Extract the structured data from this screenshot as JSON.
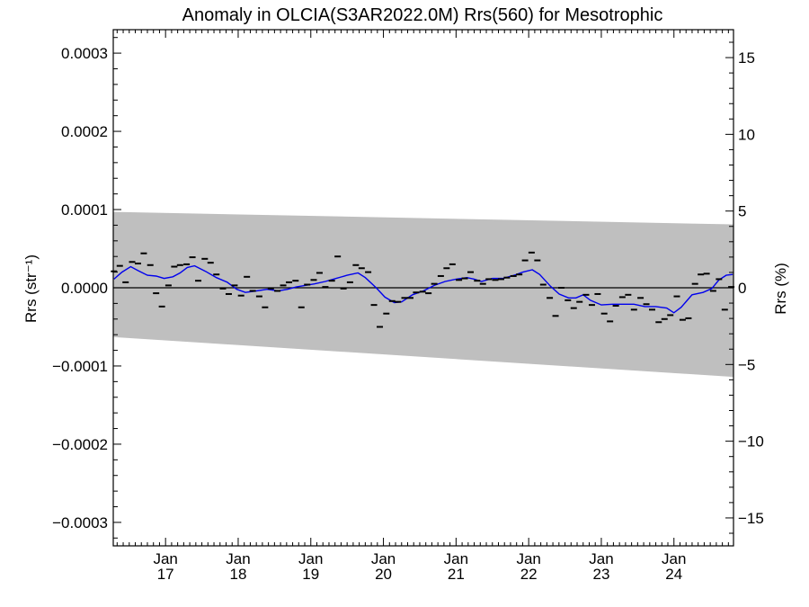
{
  "chart_data": {
    "type": "line",
    "title": "Anomaly in OLCIA(S3AR2022.0M) Rrs(560) for Mesotrophic",
    "ylabel_left": "Rrs (str⁻¹)",
    "ylabel_right": "Rrs (%)",
    "xlim": [
      2016.28,
      2024.82
    ],
    "ylim": [
      -0.00033,
      0.00033
    ],
    "ylim_right": [
      -16.82,
      16.82
    ],
    "x_ticks": [
      {
        "value": 2017.0,
        "line1": "Jan",
        "line2": "17"
      },
      {
        "value": 2018.0,
        "line1": "Jan",
        "line2": "18"
      },
      {
        "value": 2019.0,
        "line1": "Jan",
        "line2": "19"
      },
      {
        "value": 2020.0,
        "line1": "Jan",
        "line2": "20"
      },
      {
        "value": 2021.0,
        "line1": "Jan",
        "line2": "21"
      },
      {
        "value": 2022.0,
        "line1": "Jan",
        "line2": "22"
      },
      {
        "value": 2023.0,
        "line1": "Jan",
        "line2": "23"
      },
      {
        "value": 2024.0,
        "line1": "Jan",
        "line2": "24"
      }
    ],
    "y_ticks_left": [
      {
        "value": 0.0003,
        "label": "0.0003"
      },
      {
        "value": 0.0002,
        "label": "0.0002"
      },
      {
        "value": 0.0001,
        "label": "0.0001"
      },
      {
        "value": 0.0,
        "label": "0.0000"
      },
      {
        "value": -0.0001,
        "label": "−0.0001"
      },
      {
        "value": -0.0002,
        "label": "−0.0002"
      },
      {
        "value": -0.0003,
        "label": "−0.0003"
      }
    ],
    "y_ticks_right": [
      {
        "value": 15,
        "label": "15"
      },
      {
        "value": 10,
        "label": "10"
      },
      {
        "value": 5,
        "label": "5"
      },
      {
        "value": 0,
        "label": "0"
      },
      {
        "value": -5,
        "label": "−5"
      },
      {
        "value": -10,
        "label": "−10"
      },
      {
        "value": -15,
        "label": "−15"
      }
    ],
    "envelope": {
      "x": [
        2016.28,
        2024.82
      ],
      "upper": [
        9.7e-05,
        8.1e-05
      ],
      "lower": [
        -6.3e-05,
        -0.000114
      ],
      "color": "#bfbfbf"
    },
    "zero_line": 0,
    "monthly_anomaly": {
      "color": "#000000",
      "points": [
        [
          2016.29,
          2.1e-05
        ],
        [
          2016.37,
          2.8e-05
        ],
        [
          2016.45,
          7e-06
        ],
        [
          2016.54,
          3.3e-05
        ],
        [
          2016.62,
          3.1e-05
        ],
        [
          2016.7,
          4.4e-05
        ],
        [
          2016.79,
          2.9e-05
        ],
        [
          2016.87,
          -7e-06
        ],
        [
          2016.95,
          -2.4e-05
        ],
        [
          2017.04,
          3e-06
        ],
        [
          2017.12,
          2.7e-05
        ],
        [
          2017.2,
          2.9e-05
        ],
        [
          2017.29,
          3e-05
        ],
        [
          2017.37,
          3.9e-05
        ],
        [
          2017.45,
          9e-06
        ],
        [
          2017.54,
          3.7e-05
        ],
        [
          2017.62,
          3.2e-05
        ],
        [
          2017.7,
          1.7e-05
        ],
        [
          2017.79,
          -1e-06
        ],
        [
          2017.87,
          -8e-06
        ],
        [
          2017.95,
          3e-06
        ],
        [
          2018.04,
          -1e-05
        ],
        [
          2018.12,
          1.4e-05
        ],
        [
          2018.2,
          -4e-06
        ],
        [
          2018.29,
          -1.1e-05
        ],
        [
          2018.37,
          -2.5e-05
        ],
        [
          2018.45,
          -1e-06
        ],
        [
          2018.54,
          -4e-06
        ],
        [
          2018.62,
          3e-06
        ],
        [
          2018.7,
          7e-06
        ],
        [
          2018.79,
          9e-06
        ],
        [
          2018.87,
          -2.5e-05
        ],
        [
          2018.95,
          4e-06
        ],
        [
          2019.04,
          1e-05
        ],
        [
          2019.12,
          1.9e-05
        ],
        [
          2019.2,
          1e-06
        ],
        [
          2019.29,
          9e-06
        ],
        [
          2019.37,
          4e-05
        ],
        [
          2019.45,
          -1e-06
        ],
        [
          2019.54,
          7e-06
        ],
        [
          2019.62,
          2.9e-05
        ],
        [
          2019.7,
          2.5e-05
        ],
        [
          2019.79,
          2e-05
        ],
        [
          2019.87,
          -2.2e-05
        ],
        [
          2019.95,
          -5e-05
        ],
        [
          2020.04,
          -3.3e-05
        ],
        [
          2020.12,
          -1.7e-05
        ],
        [
          2020.2,
          -1.8e-05
        ],
        [
          2020.29,
          -1.3e-05
        ],
        [
          2020.37,
          -1.3e-05
        ],
        [
          2020.45,
          -6e-06
        ],
        [
          2020.54,
          -5e-06
        ],
        [
          2020.62,
          -7e-06
        ],
        [
          2020.7,
          5e-06
        ],
        [
          2020.79,
          1.5e-05
        ],
        [
          2020.87,
          2.5e-05
        ],
        [
          2020.95,
          3e-05
        ],
        [
          2021.04,
          1e-05
        ],
        [
          2021.12,
          1.2e-05
        ],
        [
          2021.2,
          2e-05
        ],
        [
          2021.29,
          9e-06
        ],
        [
          2021.37,
          5e-06
        ],
        [
          2021.45,
          1.1e-05
        ],
        [
          2021.54,
          1e-05
        ],
        [
          2021.62,
          1.1e-05
        ],
        [
          2021.7,
          1.3e-05
        ],
        [
          2021.79,
          1.5e-05
        ],
        [
          2021.87,
          1.7e-05
        ],
        [
          2021.95,
          3.5e-05
        ],
        [
          2022.04,
          4.5e-05
        ],
        [
          2022.12,
          3.5e-05
        ],
        [
          2022.2,
          4e-06
        ],
        [
          2022.29,
          -1.3e-05
        ],
        [
          2022.37,
          -3.6e-05
        ],
        [
          2022.45,
          0.0
        ],
        [
          2022.54,
          -1.6e-05
        ],
        [
          2022.62,
          -2.6e-05
        ],
        [
          2022.7,
          -1.8e-05
        ],
        [
          2022.79,
          -9e-06
        ],
        [
          2022.87,
          -2.2e-05
        ],
        [
          2022.95,
          -8e-06
        ],
        [
          2023.04,
          -3.3e-05
        ],
        [
          2023.12,
          -4.3e-05
        ],
        [
          2023.2,
          -2.3e-05
        ],
        [
          2023.29,
          -1.2e-05
        ],
        [
          2023.37,
          -9e-06
        ],
        [
          2023.45,
          -2.8e-05
        ],
        [
          2023.54,
          -1.3e-05
        ],
        [
          2023.62,
          -2.1e-05
        ],
        [
          2023.7,
          -2.8e-05
        ],
        [
          2023.79,
          -4.4e-05
        ],
        [
          2023.87,
          -4e-05
        ],
        [
          2023.95,
          -3.5e-05
        ],
        [
          2024.04,
          -1.1e-05
        ],
        [
          2024.12,
          -4.1e-05
        ],
        [
          2024.2,
          -3.9e-05
        ],
        [
          2024.29,
          5e-06
        ],
        [
          2024.37,
          1.7e-05
        ],
        [
          2024.45,
          1.8e-05
        ],
        [
          2024.54,
          -4e-06
        ],
        [
          2024.62,
          1.1e-05
        ],
        [
          2024.7,
          -2.8e-05
        ],
        [
          2024.79,
          1e-06
        ]
      ]
    },
    "running_mean": {
      "color": "#0000ee",
      "points": [
        [
          2016.29,
          1.1e-05
        ],
        [
          2016.4,
          2e-05
        ],
        [
          2016.52,
          2.7e-05
        ],
        [
          2016.62,
          2.2e-05
        ],
        [
          2016.75,
          1.6e-05
        ],
        [
          2016.87,
          1.5e-05
        ],
        [
          2016.98,
          1.2e-05
        ],
        [
          2017.1,
          1.4e-05
        ],
        [
          2017.2,
          1.9e-05
        ],
        [
          2017.3,
          2.6e-05
        ],
        [
          2017.4,
          2.8e-05
        ],
        [
          2017.55,
          2.1e-05
        ],
        [
          2017.7,
          1.3e-05
        ],
        [
          2017.85,
          7e-06
        ],
        [
          2017.98,
          -2e-06
        ],
        [
          2018.1,
          -6e-06
        ],
        [
          2018.25,
          -4e-06
        ],
        [
          2018.4,
          -2e-06
        ],
        [
          2018.55,
          -4e-06
        ],
        [
          2018.68,
          -2e-06
        ],
        [
          2018.8,
          1e-06
        ],
        [
          2018.92,
          3e-06
        ],
        [
          2019.05,
          5e-06
        ],
        [
          2019.2,
          8e-06
        ],
        [
          2019.35,
          1.2e-05
        ],
        [
          2019.5,
          1.6e-05
        ],
        [
          2019.65,
          1.9e-05
        ],
        [
          2019.75,
          1.3e-05
        ],
        [
          2019.9,
          0.0
        ],
        [
          2020.02,
          -1.2e-05
        ],
        [
          2020.15,
          -1.9e-05
        ],
        [
          2020.25,
          -1.8e-05
        ],
        [
          2020.4,
          -9e-06
        ],
        [
          2020.55,
          -4e-06
        ],
        [
          2020.7,
          3e-06
        ],
        [
          2020.85,
          8e-06
        ],
        [
          2021.0,
          1.1e-05
        ],
        [
          2021.15,
          1.3e-05
        ],
        [
          2021.25,
          1.1e-05
        ],
        [
          2021.35,
          8e-06
        ],
        [
          2021.5,
          1.2e-05
        ],
        [
          2021.65,
          1.2e-05
        ],
        [
          2021.8,
          1.6e-05
        ],
        [
          2021.92,
          2e-05
        ],
        [
          2022.05,
          2.3e-05
        ],
        [
          2022.15,
          1.7e-05
        ],
        [
          2022.3,
          2e-06
        ],
        [
          2022.42,
          -8e-06
        ],
        [
          2022.55,
          -1.3e-05
        ],
        [
          2022.65,
          -1.3e-05
        ],
        [
          2022.75,
          -9e-06
        ],
        [
          2022.85,
          -1.6e-05
        ],
        [
          2023.0,
          -2.2e-05
        ],
        [
          2023.15,
          -2.1e-05
        ],
        [
          2023.3,
          -2.1e-05
        ],
        [
          2023.45,
          -2.1e-05
        ],
        [
          2023.6,
          -2.4e-05
        ],
        [
          2023.75,
          -2.4e-05
        ],
        [
          2023.9,
          -2.6e-05
        ],
        [
          2024.0,
          -3.2e-05
        ],
        [
          2024.1,
          -2.5e-05
        ],
        [
          2024.25,
          -9e-06
        ],
        [
          2024.4,
          -6e-06
        ],
        [
          2024.52,
          -1e-06
        ],
        [
          2024.62,
          1e-05
        ],
        [
          2024.72,
          1.6e-05
        ],
        [
          2024.81,
          1.7e-05
        ]
      ]
    },
    "grid": false,
    "legend": "none"
  }
}
